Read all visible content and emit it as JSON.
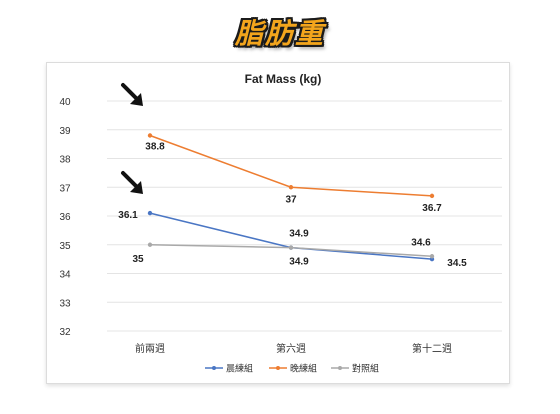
{
  "page": {
    "title": "脂肪重"
  },
  "chart_data": {
    "type": "line",
    "title": "Fat Mass (kg)",
    "categories": [
      "前兩週",
      "第六週",
      "第十二週"
    ],
    "ylim": [
      32,
      40
    ],
    "yticks": [
      32,
      33,
      34,
      35,
      36,
      37,
      38,
      39,
      40
    ],
    "grid": true,
    "legend_position": "bottom",
    "series": [
      {
        "name": "晨練組",
        "values": [
          36.1,
          34.9,
          34.5
        ],
        "color": "#4a76c4",
        "labels": [
          "36.1",
          "34.9",
          "34.5"
        ]
      },
      {
        "name": "晚練組",
        "values": [
          38.8,
          37.0,
          36.7
        ],
        "color": "#ed7d31",
        "labels": [
          "38.8",
          "37",
          "36.7"
        ]
      },
      {
        "name": "對照組",
        "values": [
          35.0,
          34.9,
          34.6
        ],
        "color": "#a9a9a9",
        "labels": [
          "35",
          "34.9",
          "34.6"
        ]
      }
    ],
    "annotations": [
      {
        "type": "arrow",
        "points_to": "晚練組 前兩週",
        "color": "#111111"
      },
      {
        "type": "arrow",
        "points_to": "晨練組 前兩週",
        "color": "#111111"
      }
    ]
  }
}
